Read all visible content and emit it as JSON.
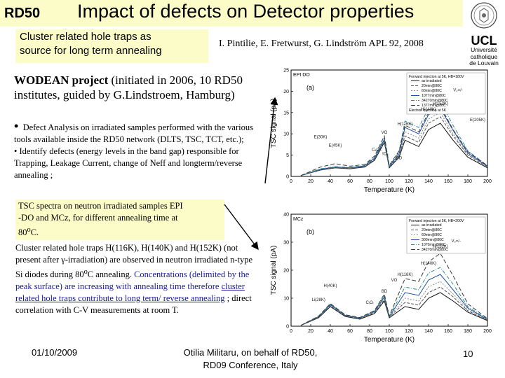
{
  "header": {
    "logo_text": "RD50",
    "title": "Impact of defects on Detector properties"
  },
  "subtitle": {
    "line1": "Cluster related hole traps as",
    "line2": "source for long term annealing"
  },
  "reference": "I. Pintilie, E. Fretwurst, G. Lindström APL 92, 2008",
  "university": {
    "short": "UCL",
    "line1": "Université",
    "line2": "catholique",
    "line3": "de Louvain"
  },
  "wodean": {
    "bold": "WODEAN project",
    "rest": " (initiated in 2006, 10 RD50 institutes, guided by G.Lindstroem, Hamburg)"
  },
  "bullets": {
    "b1": "Defect Analysis on irradiated samples performed with the various tools available inside the RD50 network (DLTS, TSC, TCT, etc.);",
    "b2": "Identify defects (energy levels in the band gap) responsible for Trapping, Leakage Current, change of Neff and longterm/reverse annealing ;"
  },
  "tsc_note": {
    "line1": "TSC spectra on neutron irradiated samples EPI",
    "line2": "-DO and MCz, for different annealing time at",
    "line3": "80",
    "line3_sup": "o",
    "line3_end": "C."
  },
  "cluster": {
    "p1": "Cluster related hole traps H(116K), H(140K) and H(152K) (not present after γ-irradiation) are observed in neutron irradiated n-type Si diodes during 80",
    "p1_sup": "o",
    "p1_end": "C annealing.",
    "p2_blue": "Concentrations (delimited by the peak surface) are increasing with annealing time therefore ",
    "p2_link": "cluster related hole traps contribute to long term/ reverse annealing",
    "p2_tail": " ; direct correlation with C-V measurements at room T."
  },
  "footer": {
    "date": "01/10/2009",
    "center_line1": "Otilia Militaru, on behalf of RD50,",
    "center_line2": "RD09 Conference, Italy",
    "page": "10"
  },
  "chart_data": [
    {
      "type": "line",
      "panel_tag": "EPI DO",
      "panel_label": "(a)",
      "title": "",
      "xlabel": "Temperature (K)",
      "ylabel": "TSC signal (pA)",
      "xlim": [
        0,
        200
      ],
      "ylim": [
        0,
        25
      ],
      "xticks": [
        0,
        20,
        40,
        60,
        80,
        100,
        120,
        140,
        160,
        180,
        200
      ],
      "yticks": [
        0,
        5,
        10,
        15,
        20,
        25
      ],
      "legend_placement": "top-right",
      "legend_header": "Forward injection at 5K, HB=180V",
      "legend_footer": "Electron injection at 5K",
      "annotations": [
        "E(30K)",
        "H(116K)",
        "H(140K)",
        "H(152K)",
        "E(205K)",
        "V₂=/-",
        "VO",
        "BD",
        "IO₂",
        "CₐCs",
        "E(45K)"
      ],
      "series": [
        {
          "name": "as irradiated",
          "values": [
            [
              10,
              0.2
            ],
            [
              30,
              1.5
            ],
            [
              45,
              2.0
            ],
            [
              60,
              1.8
            ],
            [
              75,
              2.2
            ],
            [
              85,
              3.8
            ],
            [
              95,
              8.0
            ],
            [
              100,
              2.0
            ],
            [
              110,
              4.5
            ],
            [
              116,
              8.5
            ],
            [
              130,
              7.0
            ],
            [
              140,
              11.0
            ],
            [
              152,
              12.5
            ],
            [
              165,
              8.5
            ],
            [
              180,
              4.5
            ],
            [
              200,
              2.0
            ]
          ]
        },
        {
          "name": "20min@80C",
          "values": [
            [
              10,
              0.2
            ],
            [
              30,
              1.6
            ],
            [
              45,
              2.1
            ],
            [
              60,
              1.9
            ],
            [
              75,
              2.3
            ],
            [
              85,
              4.0
            ],
            [
              95,
              8.3
            ],
            [
              100,
              2.1
            ],
            [
              110,
              4.8
            ],
            [
              116,
              9.5
            ],
            [
              130,
              8.0
            ],
            [
              140,
              12.5
            ],
            [
              152,
              14.0
            ],
            [
              165,
              9.5
            ],
            [
              180,
              5.0
            ],
            [
              200,
              2.2
            ]
          ]
        },
        {
          "name": "60min@80C",
          "values": [
            [
              10,
              0.2
            ],
            [
              30,
              1.6
            ],
            [
              45,
              2.1
            ],
            [
              60,
              1.9
            ],
            [
              75,
              2.4
            ],
            [
              85,
              4.2
            ],
            [
              95,
              8.5
            ],
            [
              100,
              2.2
            ],
            [
              110,
              5.0
            ],
            [
              116,
              10.5
            ],
            [
              130,
              9.0
            ],
            [
              140,
              13.5
            ],
            [
              152,
              15.0
            ],
            [
              165,
              10.0
            ],
            [
              180,
              5.2
            ],
            [
              200,
              2.3
            ]
          ]
        },
        {
          "name": "1077min@80C",
          "values": [
            [
              10,
              0.2
            ],
            [
              30,
              1.7
            ],
            [
              45,
              2.2
            ],
            [
              60,
              2.0
            ],
            [
              75,
              2.5
            ],
            [
              85,
              4.3
            ],
            [
              95,
              8.7
            ],
            [
              100,
              2.3
            ],
            [
              110,
              5.3
            ],
            [
              116,
              11.5
            ],
            [
              130,
              10.0
            ],
            [
              140,
              14.5
            ],
            [
              152,
              16.0
            ],
            [
              165,
              10.8
            ],
            [
              180,
              5.5
            ],
            [
              200,
              2.4
            ]
          ]
        },
        {
          "name": "34270min@80C",
          "values": [
            [
              10,
              0.2
            ],
            [
              30,
              1.8
            ],
            [
              45,
              2.3
            ],
            [
              60,
              2.1
            ],
            [
              75,
              2.6
            ],
            [
              85,
              4.5
            ],
            [
              95,
              9.0
            ],
            [
              100,
              2.4
            ],
            [
              110,
              5.8
            ],
            [
              116,
              13.0
            ],
            [
              130,
              11.5
            ],
            [
              140,
              16.0
            ],
            [
              152,
              17.5
            ],
            [
              165,
              12.0
            ],
            [
              180,
              6.0
            ],
            [
              200,
              2.5
            ]
          ]
        },
        {
          "name": "1377min@80C",
          "values": [
            [
              10,
              0.2
            ],
            [
              30,
              2.2
            ],
            [
              45,
              3.0
            ],
            [
              60,
              2.4
            ],
            [
              75,
              2.8
            ],
            [
              85,
              4.8
            ],
            [
              95,
              9.5
            ],
            [
              100,
              2.6
            ],
            [
              110,
              6.0
            ],
            [
              116,
              12.0
            ],
            [
              130,
              10.5
            ],
            [
              140,
              15.0
            ],
            [
              152,
              16.5
            ],
            [
              165,
              11.0
            ],
            [
              180,
              5.8
            ],
            [
              200,
              2.5
            ]
          ]
        }
      ]
    },
    {
      "type": "line",
      "panel_tag": "MCz",
      "panel_label": "(b)",
      "title": "",
      "xlabel": "Temperature (K)",
      "ylabel": "TSC signal (pA)",
      "xlim": [
        0,
        200
      ],
      "ylim": [
        0,
        40
      ],
      "xticks": [
        0,
        20,
        40,
        60,
        80,
        100,
        120,
        140,
        160,
        180,
        200
      ],
      "yticks": [
        0,
        10,
        20,
        30,
        40
      ],
      "legend_placement": "top-right",
      "legend_header": "Forward injection at 5K, HB=200V",
      "annotations": [
        "H(40K)",
        "Li(28K)",
        "BD",
        "VO",
        "H(116K)",
        "H(140K)",
        "H(152K)",
        "V₂=/-",
        "CᵢOᵢ"
      ],
      "series": [
        {
          "name": "as irradiated",
          "values": [
            [
              10,
              0.3
            ],
            [
              28,
              3.0
            ],
            [
              40,
              7.0
            ],
            [
              55,
              3.5
            ],
            [
              70,
              2.5
            ],
            [
              85,
              4.5
            ],
            [
              95,
              9.0
            ],
            [
              100,
              3.0
            ],
            [
              116,
              7.0
            ],
            [
              130,
              6.0
            ],
            [
              140,
              10.0
            ],
            [
              152,
              12.0
            ],
            [
              165,
              9.0
            ],
            [
              180,
              5.0
            ],
            [
              200,
              2.0
            ]
          ]
        },
        {
          "name": "20min@80C",
          "values": [
            [
              10,
              0.3
            ],
            [
              28,
              3.2
            ],
            [
              40,
              7.3
            ],
            [
              55,
              3.7
            ],
            [
              70,
              2.7
            ],
            [
              85,
              4.8
            ],
            [
              95,
              9.5
            ],
            [
              100,
              3.2
            ],
            [
              116,
              8.5
            ],
            [
              130,
              7.5
            ],
            [
              140,
              12.0
            ],
            [
              152,
              14.0
            ],
            [
              165,
              10.5
            ],
            [
              180,
              5.5
            ],
            [
              200,
              2.2
            ]
          ]
        },
        {
          "name": "60min@80C",
          "values": [
            [
              10,
              0.3
            ],
            [
              28,
              3.3
            ],
            [
              40,
              7.5
            ],
            [
              55,
              3.8
            ],
            [
              70,
              2.8
            ],
            [
              85,
              5.0
            ],
            [
              95,
              10.0
            ],
            [
              100,
              3.3
            ],
            [
              116,
              10.0
            ],
            [
              130,
              9.0
            ],
            [
              140,
              14.0
            ],
            [
              152,
              16.0
            ],
            [
              165,
              11.5
            ],
            [
              180,
              6.0
            ],
            [
              200,
              2.3
            ]
          ]
        },
        {
          "name": "300min@80C",
          "values": [
            [
              10,
              0.3
            ],
            [
              28,
              3.4
            ],
            [
              40,
              7.7
            ],
            [
              55,
              3.9
            ],
            [
              70,
              2.9
            ],
            [
              85,
              5.2
            ],
            [
              95,
              10.5
            ],
            [
              100,
              3.4
            ],
            [
              116,
              12.0
            ],
            [
              130,
              11.0
            ],
            [
              140,
              16.5
            ],
            [
              152,
              18.5
            ],
            [
              165,
              13.0
            ],
            [
              180,
              6.5
            ],
            [
              200,
              2.4
            ]
          ]
        },
        {
          "name": "1070min@80C",
          "values": [
            [
              10,
              0.3
            ],
            [
              28,
              3.5
            ],
            [
              40,
              7.9
            ],
            [
              55,
              4.0
            ],
            [
              70,
              3.0
            ],
            [
              85,
              5.4
            ],
            [
              95,
              11.0
            ],
            [
              100,
              3.5
            ],
            [
              116,
              14.0
            ],
            [
              130,
              13.0
            ],
            [
              140,
              19.0
            ],
            [
              152,
              21.0
            ],
            [
              165,
              15.0
            ],
            [
              180,
              7.0
            ],
            [
              200,
              2.5
            ]
          ]
        },
        {
          "name": "34270min@80C",
          "values": [
            [
              10,
              0.3
            ],
            [
              28,
              3.6
            ],
            [
              40,
              8.1
            ],
            [
              55,
              4.1
            ],
            [
              70,
              3.1
            ],
            [
              85,
              5.6
            ],
            [
              95,
              11.5
            ],
            [
              100,
              3.6
            ],
            [
              116,
              17.0
            ],
            [
              130,
              16.0
            ],
            [
              140,
              23.0
            ],
            [
              152,
              26.0
            ],
            [
              165,
              18.0
            ],
            [
              180,
              8.0
            ],
            [
              200,
              2.7
            ]
          ]
        }
      ]
    }
  ]
}
